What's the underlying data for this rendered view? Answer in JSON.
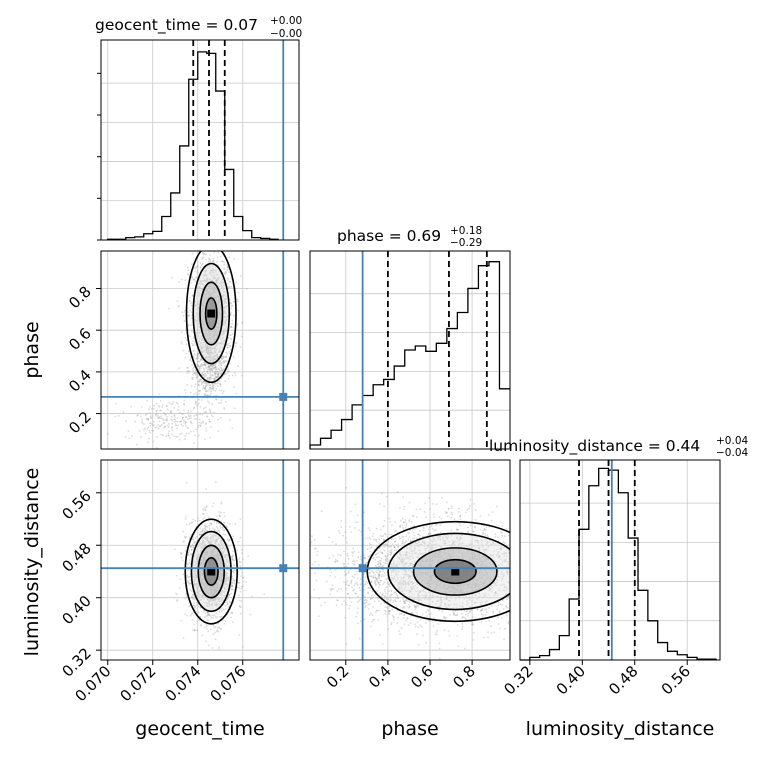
{
  "chart_data": {
    "type": "corner",
    "parameters": [
      "geocent_time",
      "phase",
      "luminosity_distance"
    ],
    "colors": {
      "truth": "#4682b4",
      "line": "#000000",
      "grid": "#c8c8c8",
      "scatter": "#9a9a9a"
    },
    "titles": {
      "geocent_time": {
        "name": "geocent_time",
        "eq": " = ",
        "value": "0.07",
        "plus": "+0.00",
        "minus": "−0.00"
      },
      "phase": {
        "name": "phase",
        "eq": " = ",
        "value": "0.69",
        "plus": "+0.18",
        "minus": "−0.29"
      },
      "luminosity_distance": {
        "name": "luminosity_distance",
        "eq": " = ",
        "value": "0.44",
        "plus": "+0.04",
        "minus": "−0.04"
      }
    },
    "axis_labels": {
      "x": [
        "geocent_time",
        "phase",
        "luminosity_distance"
      ],
      "y": [
        "phase",
        "luminosity_distance"
      ]
    },
    "truths": {
      "geocent_time": 0.0778,
      "phase": 0.28,
      "luminosity_distance": 0.445
    },
    "ranges": {
      "geocent_time": [
        0.0697,
        0.0785
      ],
      "phase": [
        0.03,
        0.98
      ],
      "luminosity_distance": [
        0.305,
        0.61
      ]
    },
    "ticks": {
      "geocent_time": [
        {
          "v": 0.07,
          "t": "0.070"
        },
        {
          "v": 0.072,
          "t": "0.072"
        },
        {
          "v": 0.074,
          "t": "0.074"
        },
        {
          "v": 0.076,
          "t": "0.076"
        }
      ],
      "phase": [
        {
          "v": 0.2,
          "t": "0.2"
        },
        {
          "v": 0.4,
          "t": "0.4"
        },
        {
          "v": 0.6,
          "t": "0.6"
        },
        {
          "v": 0.8,
          "t": "0.8"
        }
      ],
      "luminosity_distance": [
        {
          "v": 0.32,
          "t": "0.32"
        },
        {
          "v": 0.4,
          "t": "0.40"
        },
        {
          "v": 0.48,
          "t": "0.48"
        },
        {
          "v": 0.56,
          "t": "0.56"
        }
      ]
    },
    "quantiles": {
      "geocent_time": [
        0.0738,
        0.0745,
        0.0752
      ],
      "phase": [
        0.4,
        0.69,
        0.87
      ],
      "luminosity_distance": [
        0.395,
        0.44,
        0.48
      ]
    },
    "histograms": {
      "geocent_time": {
        "edges": [
          0.07,
          0.0704,
          0.0708,
          0.0712,
          0.0716,
          0.072,
          0.0724,
          0.0728,
          0.0732,
          0.0736,
          0.074,
          0.0744,
          0.0748,
          0.0752,
          0.0756,
          0.076,
          0.0764,
          0.0768,
          0.0772,
          0.0776
        ],
        "counts": [
          1,
          1,
          3,
          4,
          8,
          11,
          30,
          60,
          120,
          205,
          240,
          238,
          190,
          90,
          30,
          12,
          3,
          2,
          1
        ],
        "ymax": 250
      },
      "phase": {
        "edges": [
          0.03,
          0.08,
          0.13,
          0.18,
          0.23,
          0.28,
          0.33,
          0.38,
          0.43,
          0.48,
          0.53,
          0.58,
          0.63,
          0.68,
          0.73,
          0.78,
          0.83,
          0.88,
          0.93,
          0.98
        ],
        "counts": [
          3,
          8,
          14,
          22,
          33,
          40,
          48,
          52,
          62,
          74,
          77,
          73,
          79,
          90,
          102,
          120,
          137,
          140,
          45
        ],
        "ymax": 145
      },
      "luminosity_distance": {
        "edges": [
          0.305,
          0.32,
          0.335,
          0.35,
          0.365,
          0.38,
          0.395,
          0.41,
          0.425,
          0.44,
          0.455,
          0.47,
          0.485,
          0.5,
          0.515,
          0.53,
          0.545,
          0.56,
          0.575,
          0.59,
          0.605
        ],
        "counts": [
          0,
          3,
          5,
          12,
          28,
          70,
          150,
          200,
          220,
          218,
          192,
          140,
          80,
          45,
          20,
          10,
          6,
          3,
          1,
          1
        ],
        "ymax": 225
      }
    },
    "scatter_blobs": {
      "geocent_time_phase": [
        {
          "x": 0.0746,
          "y": 0.68,
          "sx": 0.0005,
          "sy": 0.15,
          "n": 1300
        },
        {
          "x": 0.0745,
          "y": 0.42,
          "sx": 0.0004,
          "sy": 0.09,
          "n": 500
        },
        {
          "x": 0.0728,
          "y": 0.17,
          "sx": 0.001,
          "sy": 0.05,
          "n": 250
        }
      ],
      "geocent_time_luminosity_distance": [
        {
          "x": 0.0746,
          "y": 0.44,
          "sx": 0.00055,
          "sy": 0.038,
          "n": 1700
        }
      ],
      "phase_luminosity_distance": [
        {
          "x": 0.72,
          "y": 0.44,
          "sx": 0.22,
          "sy": 0.04,
          "n": 2200
        },
        {
          "x": 0.4,
          "y": 0.44,
          "sx": 0.15,
          "sy": 0.04,
          "n": 600
        }
      ]
    }
  }
}
